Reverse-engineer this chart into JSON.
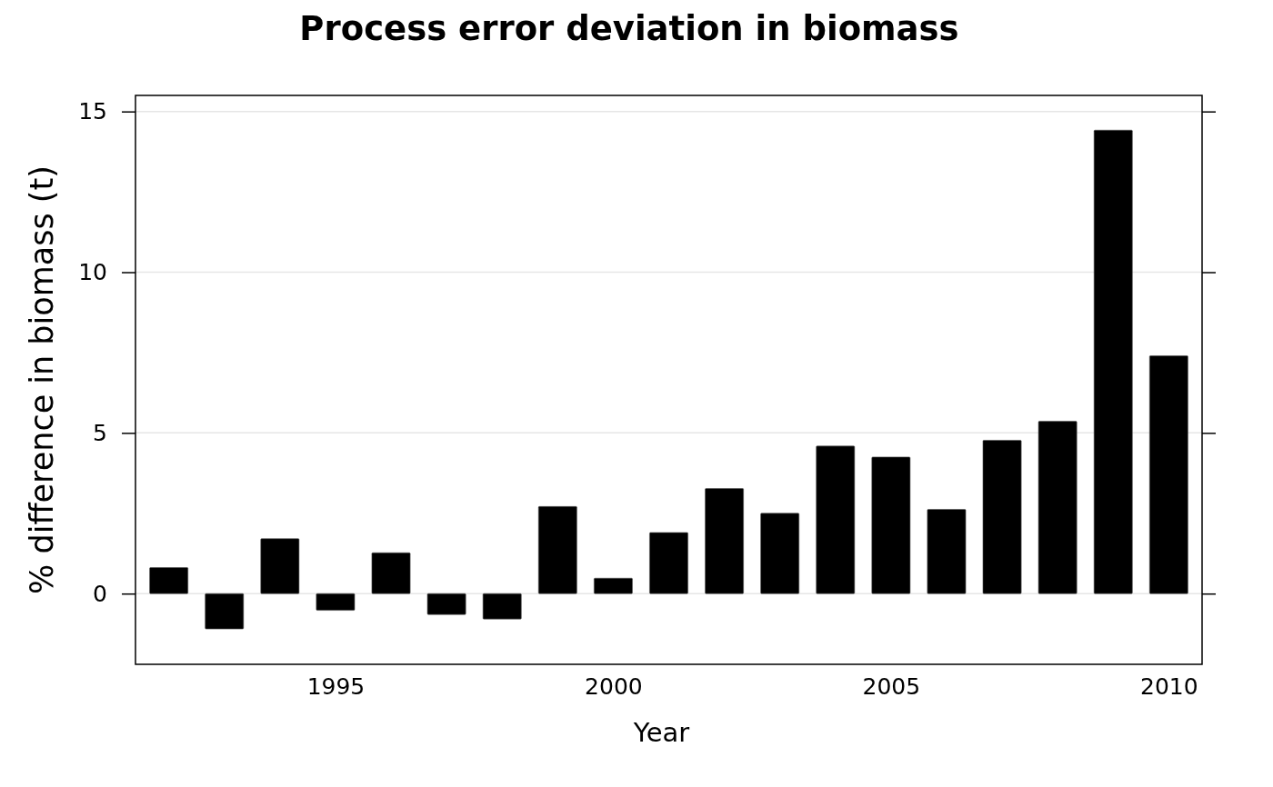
{
  "chart_data": {
    "type": "bar",
    "title": "Process error deviation in biomass",
    "xlabel": "Year",
    "ylabel": "% difference in biomass (t)",
    "x": [
      1992,
      1993,
      1994,
      1995,
      1996,
      1997,
      1998,
      1999,
      2000,
      2001,
      2002,
      2003,
      2004,
      2005,
      2006,
      2007,
      2008,
      2009,
      2010
    ],
    "values": [
      0.81,
      -1.1,
      1.71,
      -0.52,
      1.27,
      -0.65,
      -0.79,
      2.71,
      0.48,
      1.9,
      3.27,
      2.5,
      4.59,
      4.25,
      2.62,
      4.77,
      5.36,
      14.42,
      7.4
    ],
    "color": "#000000",
    "xlim": [
      1991.4,
      2010.6
    ],
    "xticks": [
      1995,
      2000,
      2005,
      2010
    ],
    "ylim": [
      -2.2,
      15.5
    ],
    "yticks": [
      0,
      5,
      10,
      15
    ],
    "grid": "y"
  }
}
